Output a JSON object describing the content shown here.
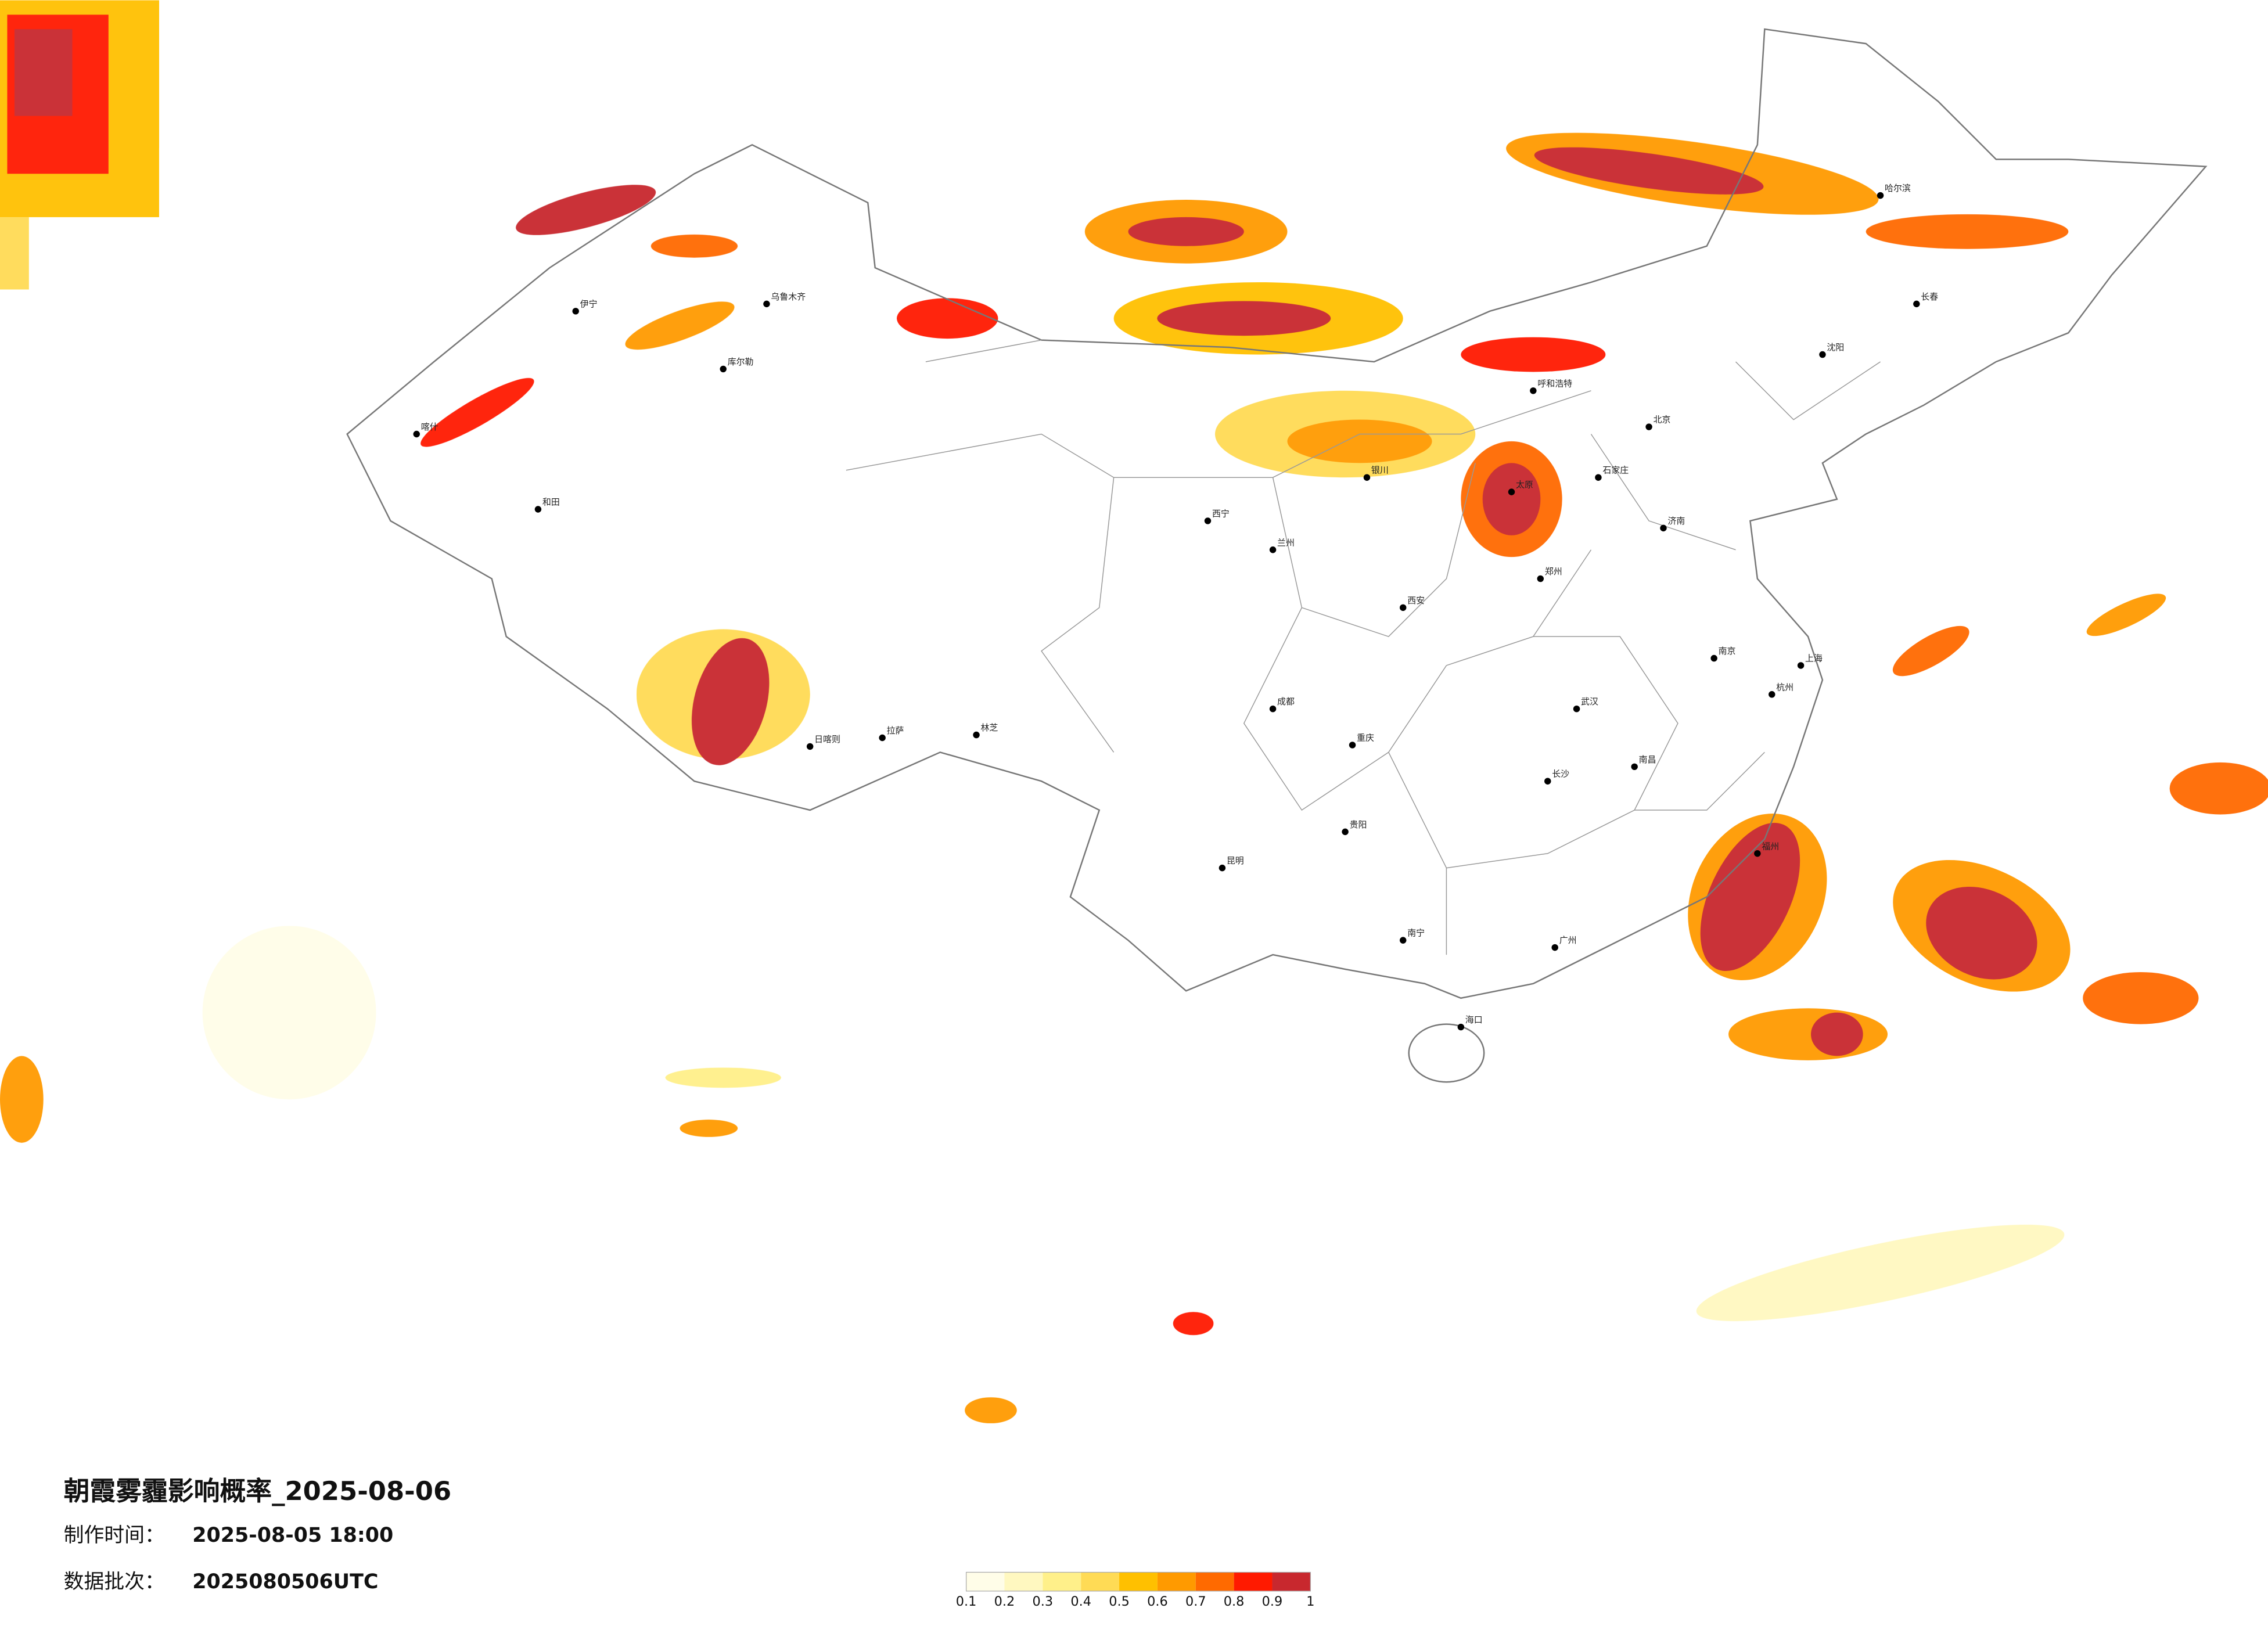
{
  "title": "朝霞雾霾影响概率_2025-08-06",
  "made_time": {
    "label": "制作时间：",
    "value": "2025-08-05 18:00"
  },
  "batch": {
    "label": "数据批次：",
    "value": "2025080506UTC"
  },
  "legend": {
    "colors": [
      "#fffde8",
      "#fff8c0",
      "#fff08a",
      "#ffdb55",
      "#ffc000",
      "#ff9a00",
      "#ff6a00",
      "#ff1a00",
      "#c8282e"
    ],
    "ticks": [
      0.1,
      0.2,
      0.3,
      0.4,
      0.5,
      0.6,
      0.7,
      0.8,
      0.9,
      1
    ]
  },
  "cities": [
    "北京",
    "上海",
    "广州",
    "成都",
    "重庆",
    "武汉",
    "西安",
    "拉萨",
    "乌鲁木齐",
    "哈尔滨",
    "昆明",
    "兰州",
    "呼和浩特",
    "和田",
    "喀什",
    "海口",
    "南宁",
    "贵阳",
    "长沙",
    "南昌",
    "福州",
    "杭州",
    "南京",
    "济南",
    "郑州",
    "太原",
    "石家庄",
    "沈阳",
    "长春",
    "西宁",
    "银川",
    "伊宁",
    "库尔勒",
    "日喀则",
    "林芝"
  ]
}
